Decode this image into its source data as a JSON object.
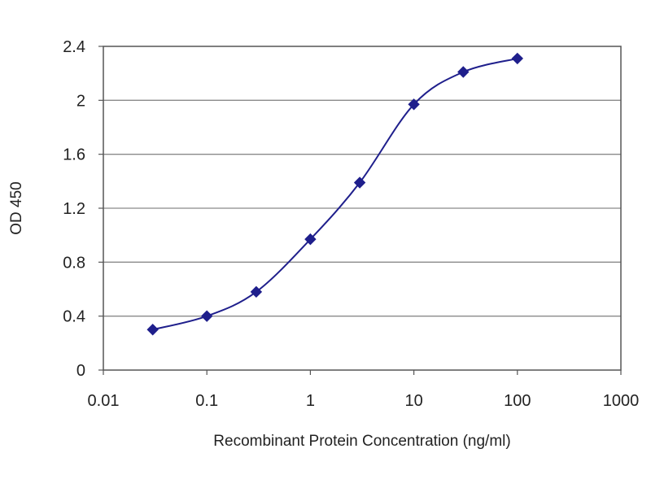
{
  "chart_data": {
    "type": "line",
    "xlabel": "Recombinant Protein Concentration (ng/ml)",
    "ylabel": "OD 450",
    "x_scale": "log",
    "xlim": [
      0.01,
      1000
    ],
    "ylim": [
      0,
      2.4
    ],
    "x_ticks": [
      "0.01",
      "0.1",
      "1",
      "10",
      "100",
      "1000"
    ],
    "y_ticks": [
      "0",
      "0.4",
      "0.8",
      "1.2",
      "1.6",
      "2",
      "2.4"
    ],
    "grid": true,
    "legend": "none",
    "series": [
      {
        "color": "#1f1f8c",
        "marker": "diamond",
        "points": [
          {
            "x": 0.03,
            "y": 0.3
          },
          {
            "x": 0.1,
            "y": 0.4
          },
          {
            "x": 0.3,
            "y": 0.58
          },
          {
            "x": 1,
            "y": 0.97
          },
          {
            "x": 3,
            "y": 1.39
          },
          {
            "x": 10,
            "y": 1.97
          },
          {
            "x": 30,
            "y": 2.21
          },
          {
            "x": 100,
            "y": 2.31
          }
        ]
      }
    ]
  }
}
